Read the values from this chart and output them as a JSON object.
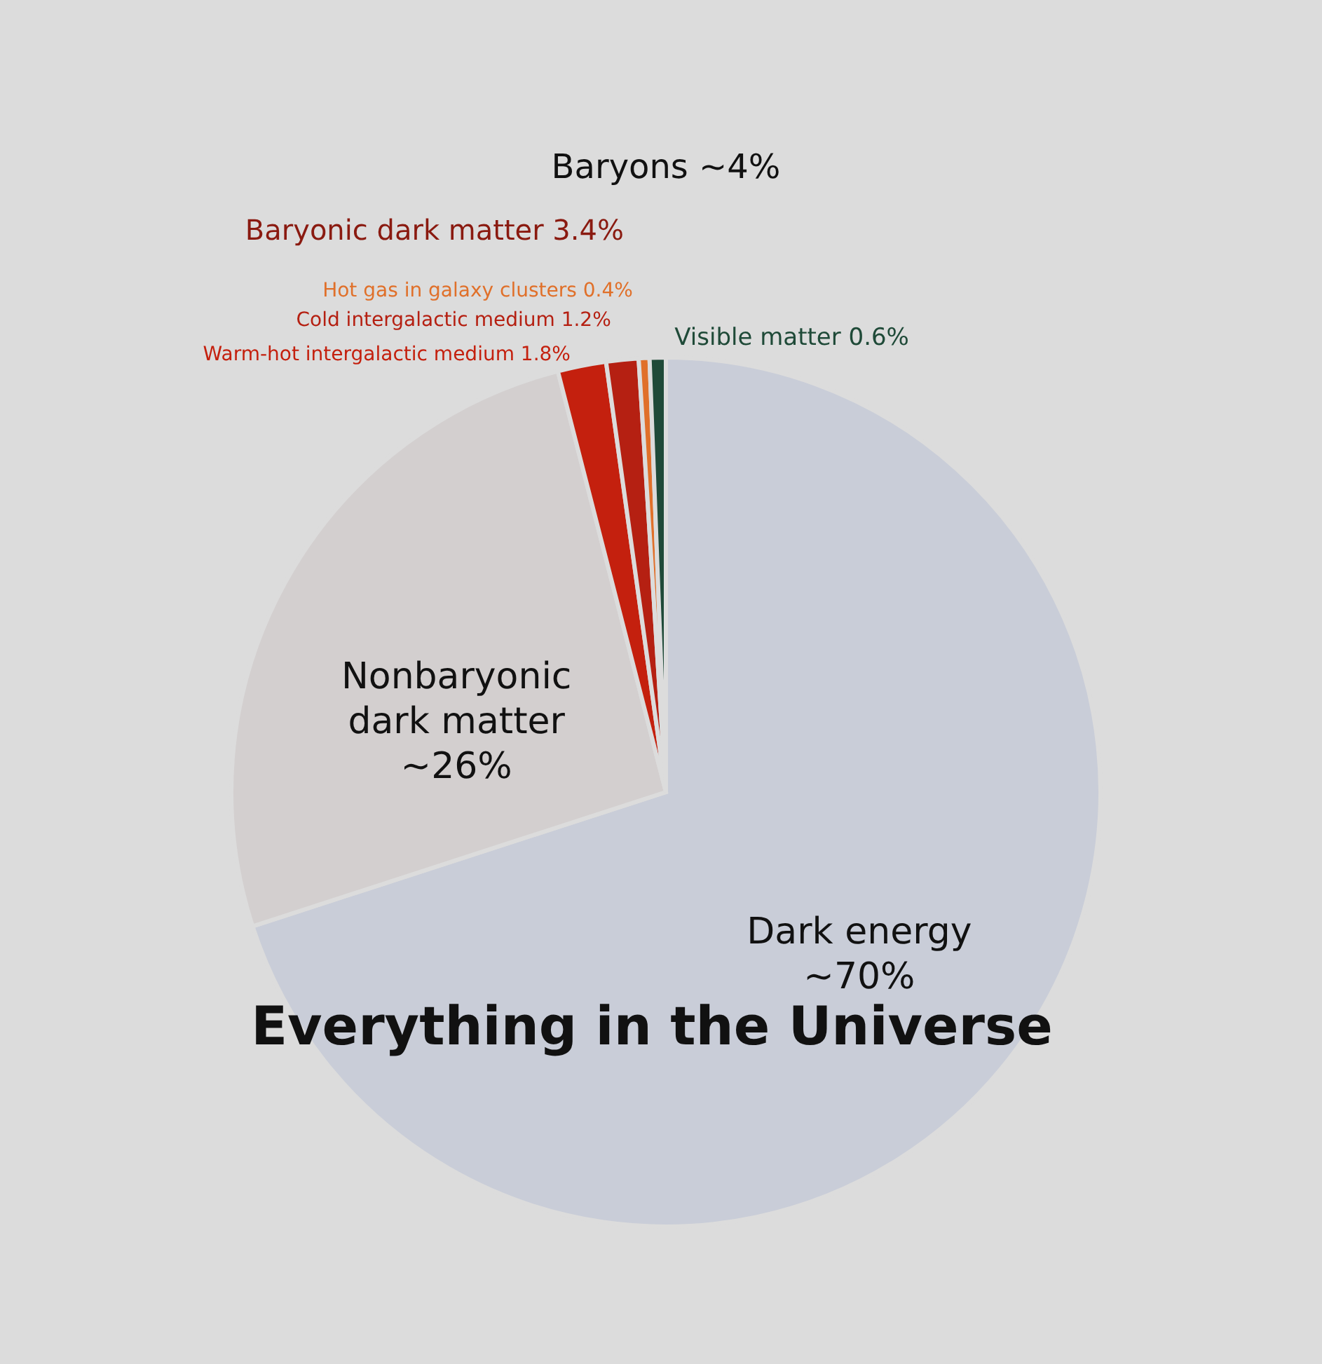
{
  "chart_data": {
    "type": "pie",
    "title": "Everything in the Universe",
    "annotations": [
      "Baryons ~4%",
      "Baryonic dark matter 3.4%"
    ],
    "categories": [
      "Dark energy",
      "Nonbaryonic dark matter",
      "Warm-hot intergalactic medium",
      "Cold intergalactic medium",
      "Hot gas in galaxy clusters",
      "Visible matter"
    ],
    "values": [
      70,
      26,
      1.8,
      1.2,
      0.4,
      0.6
    ],
    "value_labels": [
      "~70%",
      "~26%",
      "1.8%",
      "1.2%",
      "0.4%",
      "0.6%"
    ],
    "colors": [
      "#c9cdd8",
      "#d3cfcf",
      "#c4200e",
      "#b52012",
      "#e0702a",
      "#1f4a38"
    ]
  }
}
